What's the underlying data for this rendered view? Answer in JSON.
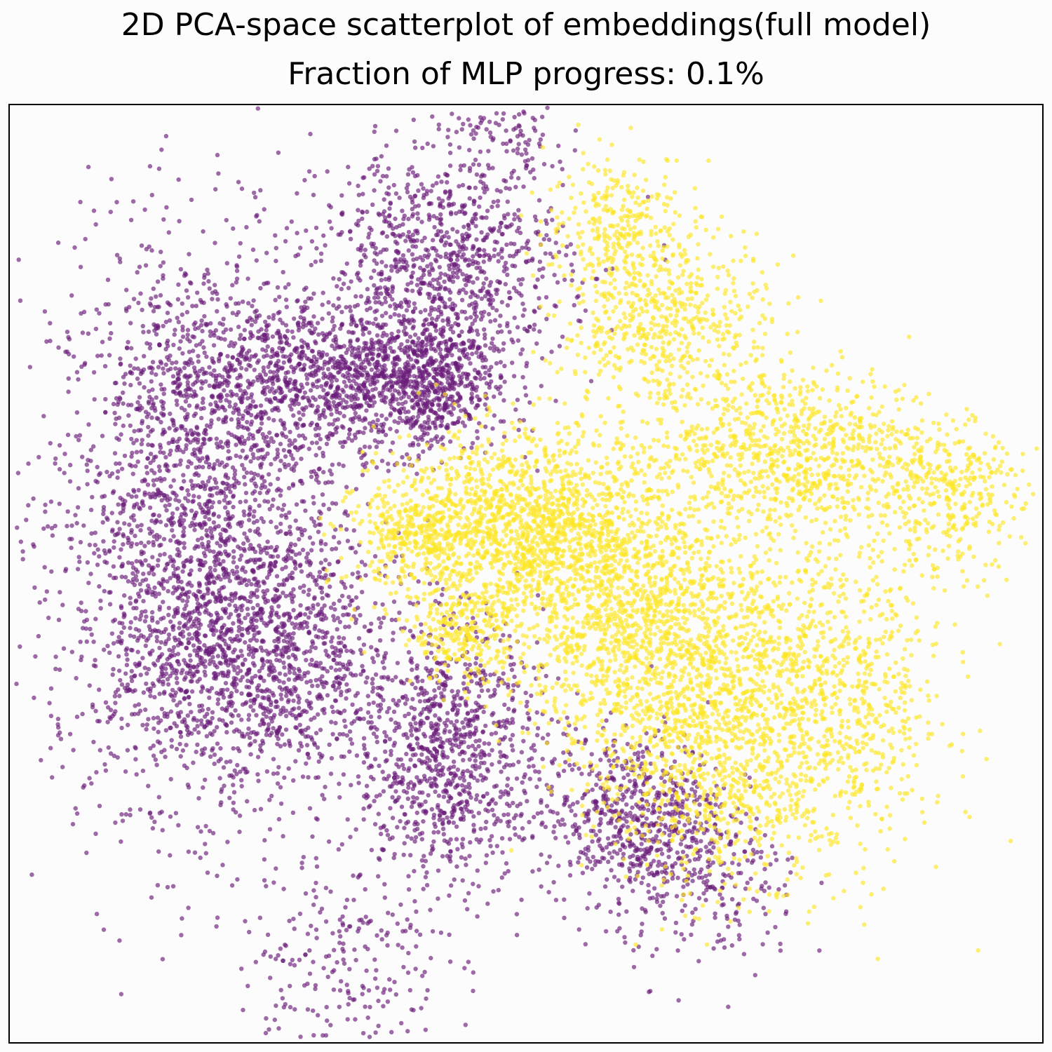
{
  "figure": {
    "title": "2D PCA-space scatterplot of embeddings(full model)",
    "subtitle": "Fraction of MLP progress: 0.1%"
  },
  "chart_data": {
    "type": "scatter",
    "title": "2D PCA-space scatterplot of embeddings(full model)",
    "subtitle": "Fraction of MLP progress: 0.1%",
    "xlabel": "",
    "ylabel": "",
    "xticks": [],
    "yticks": [],
    "grid": false,
    "legend": "none",
    "xlim": [
      -1.0,
      1.0
    ],
    "ylim": [
      -1.0,
      1.0
    ],
    "colors": {
      "class_0": "#6a1b7a",
      "class_1": "#fde725"
    },
    "marker_alpha": 0.65,
    "series": [
      {
        "color": "#6a1b7a",
        "clusters": [
          {
            "cx": -0.64,
            "cy": 0.12,
            "sx": 0.14,
            "sy": 0.3,
            "n": 2200
          },
          {
            "cx": -0.52,
            "cy": -0.18,
            "sx": 0.14,
            "sy": 0.14,
            "n": 1200
          },
          {
            "cx": -0.38,
            "cy": 0.42,
            "sx": 0.16,
            "sy": 0.08,
            "n": 1100
          },
          {
            "cx": -0.16,
            "cy": 0.66,
            "sx": 0.12,
            "sy": 0.12,
            "n": 1000
          },
          {
            "cx": -0.15,
            "cy": -0.38,
            "sx": 0.09,
            "sy": 0.14,
            "n": 1000
          },
          {
            "cx": -0.2,
            "cy": 0.4,
            "sx": 0.07,
            "sy": 0.07,
            "n": 550
          },
          {
            "cx": 0.21,
            "cy": -0.52,
            "sx": 0.09,
            "sy": 0.09,
            "n": 650
          },
          {
            "cx": -0.36,
            "cy": -0.82,
            "sx": 0.1,
            "sy": 0.12,
            "n": 240
          },
          {
            "cx": 0.36,
            "cy": -0.68,
            "sx": 0.09,
            "sy": 0.09,
            "n": 200
          },
          {
            "cx": -0.04,
            "cy": 0.93,
            "sx": 0.06,
            "sy": 0.04,
            "n": 80
          }
        ]
      },
      {
        "color": "#fde725",
        "clusters": [
          {
            "cx": 0.0,
            "cy": 0.1,
            "sx": 0.14,
            "sy": 0.1,
            "n": 1600
          },
          {
            "cx": 0.22,
            "cy": -0.1,
            "sx": 0.13,
            "sy": 0.13,
            "n": 1200
          },
          {
            "cx": 0.37,
            "cy": -0.35,
            "sx": 0.12,
            "sy": 0.16,
            "n": 1200
          },
          {
            "cx": 0.52,
            "cy": 0.26,
            "sx": 0.14,
            "sy": 0.09,
            "n": 900
          },
          {
            "cx": 0.62,
            "cy": -0.26,
            "sx": 0.1,
            "sy": 0.18,
            "n": 700
          },
          {
            "cx": 0.27,
            "cy": 0.54,
            "sx": 0.1,
            "sy": 0.1,
            "n": 600
          },
          {
            "cx": 0.82,
            "cy": 0.16,
            "sx": 0.07,
            "sy": 0.08,
            "n": 300
          },
          {
            "cx": 0.18,
            "cy": 0.76,
            "sx": 0.07,
            "sy": 0.07,
            "n": 250
          },
          {
            "cx": -0.12,
            "cy": -0.13,
            "sx": 0.05,
            "sy": 0.05,
            "n": 250
          },
          {
            "cx": -0.22,
            "cy": 0.08,
            "sx": 0.06,
            "sy": 0.05,
            "n": 250
          }
        ]
      }
    ]
  }
}
